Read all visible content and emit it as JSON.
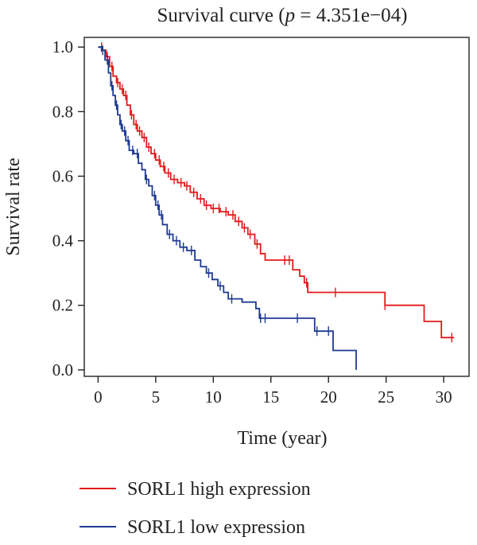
{
  "chart_data": {
    "type": "line",
    "title_prefix": "Survival curve (",
    "title_p": "p",
    "title_suffix": " = 4.351e−04)",
    "xlabel": "Time (year)",
    "ylabel": "Survival rate",
    "xlim": [
      -1.2,
      32.2
    ],
    "ylim": [
      -0.02,
      1.03
    ],
    "xticks": [
      0,
      5,
      10,
      15,
      20,
      25,
      30
    ],
    "xtick_labels": [
      "0",
      "5",
      "10",
      "15",
      "20",
      "25",
      "30"
    ],
    "yticks": [
      0.0,
      0.2,
      0.4,
      0.6,
      0.8,
      1.0
    ],
    "ytick_labels": [
      "0.0",
      "0.2",
      "0.4",
      "0.6",
      "0.8",
      "1.0"
    ],
    "series": [
      {
        "name": "SORL1 high expression",
        "color": "#e31a1c",
        "steps": [
          [
            0,
            1.0
          ],
          [
            0.4,
            0.99
          ],
          [
            0.7,
            0.97
          ],
          [
            1.0,
            0.94
          ],
          [
            1.3,
            0.91
          ],
          [
            1.6,
            0.89
          ],
          [
            1.9,
            0.87
          ],
          [
            2.2,
            0.85
          ],
          [
            2.5,
            0.82
          ],
          [
            2.8,
            0.79
          ],
          [
            3.1,
            0.76
          ],
          [
            3.4,
            0.74
          ],
          [
            3.8,
            0.72
          ],
          [
            4.2,
            0.69
          ],
          [
            4.6,
            0.67
          ],
          [
            5.0,
            0.65
          ],
          [
            5.4,
            0.63
          ],
          [
            5.8,
            0.61
          ],
          [
            6.3,
            0.59
          ],
          [
            6.9,
            0.58
          ],
          [
            7.5,
            0.57
          ],
          [
            8.0,
            0.55
          ],
          [
            8.6,
            0.53
          ],
          [
            9.2,
            0.51
          ],
          [
            9.8,
            0.5
          ],
          [
            10.6,
            0.49
          ],
          [
            11.3,
            0.48
          ],
          [
            11.9,
            0.46
          ],
          [
            12.5,
            0.44
          ],
          [
            13.0,
            0.42
          ],
          [
            13.6,
            0.39
          ],
          [
            14.1,
            0.36
          ],
          [
            14.5,
            0.34
          ],
          [
            16.9,
            0.31
          ],
          [
            17.5,
            0.29
          ],
          [
            17.9,
            0.27
          ],
          [
            18.2,
            0.24
          ],
          [
            24.9,
            0.2
          ],
          [
            28.3,
            0.15
          ],
          [
            29.8,
            0.1
          ],
          [
            30.9,
            0.1
          ]
        ],
        "censor_x": [
          0.3,
          0.8,
          1.2,
          1.7,
          2.1,
          2.4,
          2.9,
          3.3,
          3.6,
          4.0,
          4.4,
          4.9,
          5.3,
          5.7,
          6.1,
          6.6,
          7.2,
          7.7,
          8.3,
          8.9,
          9.4,
          10.0,
          10.5,
          11.1,
          11.7,
          12.2,
          12.7,
          13.2,
          13.8,
          16.2,
          16.6,
          18.1,
          20.6,
          24.9,
          30.7
        ]
      },
      {
        "name": "SORL1 low expression",
        "color": "#1f3a93",
        "steps": [
          [
            0,
            1.0
          ],
          [
            0.3,
            0.99
          ],
          [
            0.6,
            0.96
          ],
          [
            0.9,
            0.92
          ],
          [
            1.1,
            0.88
          ],
          [
            1.3,
            0.85
          ],
          [
            1.5,
            0.82
          ],
          [
            1.7,
            0.79
          ],
          [
            1.9,
            0.76
          ],
          [
            2.1,
            0.74
          ],
          [
            2.4,
            0.71
          ],
          [
            2.7,
            0.68
          ],
          [
            3.1,
            0.67
          ],
          [
            3.5,
            0.64
          ],
          [
            3.8,
            0.62
          ],
          [
            4.1,
            0.59
          ],
          [
            4.4,
            0.57
          ],
          [
            4.7,
            0.54
          ],
          [
            5.0,
            0.51
          ],
          [
            5.3,
            0.48
          ],
          [
            5.6,
            0.45
          ],
          [
            6.0,
            0.42
          ],
          [
            6.5,
            0.4
          ],
          [
            7.1,
            0.38
          ],
          [
            7.7,
            0.37
          ],
          [
            8.4,
            0.34
          ],
          [
            8.9,
            0.32
          ],
          [
            9.4,
            0.3
          ],
          [
            9.9,
            0.28
          ],
          [
            10.4,
            0.26
          ],
          [
            10.9,
            0.24
          ],
          [
            11.3,
            0.22
          ],
          [
            12.5,
            0.21
          ],
          [
            13.7,
            0.19
          ],
          [
            14.0,
            0.16
          ],
          [
            18.8,
            0.12
          ],
          [
            20.4,
            0.06
          ],
          [
            22.4,
            0.0
          ]
        ],
        "censor_x": [
          0.4,
          0.8,
          1.2,
          1.6,
          2.0,
          2.3,
          2.6,
          3.0,
          3.4,
          4.2,
          4.9,
          5.2,
          5.5,
          6.2,
          6.8,
          7.4,
          8.1,
          9.6,
          10.6,
          11.6,
          14.1,
          14.5,
          17.3,
          19.0,
          20.0
        ]
      }
    ],
    "legend_position": "bottom-left"
  }
}
